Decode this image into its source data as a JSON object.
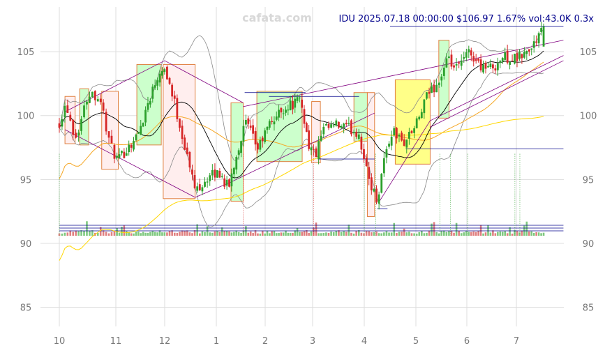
{
  "watermark": "cafata.com",
  "chart_data": {
    "type": "candlestick",
    "title": "IDU 2025.07.18 00:00:00 $106.97 1.67% vol:43.0K 0.3x",
    "x_ticks": [
      "10",
      "11",
      "12",
      "1",
      "2",
      "3",
      "4",
      "5",
      "6",
      "7"
    ],
    "y_ticks": [
      85,
      90,
      95,
      100,
      105
    ],
    "ylim": [
      83.5,
      108.5
    ],
    "grid": true,
    "colors": {
      "up": "#2ca02c",
      "down": "#d62728",
      "ma_short": "#000000",
      "ma_mid": "#f5a623",
      "ma_long": "#ffd700",
      "band": "#888888",
      "channel": "#800080",
      "level": "#00008b",
      "box_up_fill": "#ccffcc",
      "box_down_fill": "#ffeeee",
      "box_highlight_fill": "#ffff88",
      "box_edge": "#e08040"
    },
    "boxes": [
      {
        "from": 0.1,
        "to": 0.28,
        "low": 97.8,
        "high": 101.5,
        "kind": "down"
      },
      {
        "from": 0.36,
        "to": 0.52,
        "low": 97.7,
        "high": 102.1,
        "kind": "up"
      },
      {
        "from": 0.75,
        "to": 1.05,
        "low": 95.8,
        "high": 101.9,
        "kind": "down"
      },
      {
        "from": 1.43,
        "to": 1.93,
        "low": 97.7,
        "high": 104.0,
        "kind": "up"
      },
      {
        "from": 1.97,
        "to": 2.59,
        "low": 93.5,
        "high": 104.0,
        "kind": "down"
      },
      {
        "from": 3.3,
        "to": 3.55,
        "low": 93.3,
        "high": 101.0,
        "kind": "up"
      },
      {
        "from": 3.83,
        "to": 4.78,
        "low": 96.4,
        "high": 101.9,
        "kind": "up"
      },
      {
        "from": 4.98,
        "to": 5.15,
        "low": 96.3,
        "high": 101.1,
        "kind": "down"
      },
      {
        "from": 5.8,
        "to": 6.06,
        "low": 98.0,
        "high": 101.8,
        "kind": "up"
      },
      {
        "from": 6.06,
        "to": 6.2,
        "low": 92.1,
        "high": 101.8,
        "kind": "down"
      },
      {
        "from": 6.6,
        "to": 7.28,
        "low": 96.2,
        "high": 102.8,
        "kind": "highlight"
      },
      {
        "from": 7.45,
        "to": 7.65,
        "low": 99.8,
        "high": 105.9,
        "kind": "up"
      }
    ],
    "levels": [
      {
        "from": 6.5,
        "to": 9.95,
        "y": 107.0
      },
      {
        "from": 3.58,
        "to": 4.85,
        "y": 101.8
      },
      {
        "from": 4.08,
        "to": 5.9,
        "y": 101.5
      },
      {
        "from": 5.1,
        "to": 6.2,
        "y": 96.6
      },
      {
        "from": 6.8,
        "to": 9.95,
        "y": 97.4
      },
      {
        "from": 6.25,
        "to": 6.45,
        "y": 92.7
      }
    ],
    "channels": [
      {
        "x1": 0.1,
        "y1": 100.3,
        "x2": 2.0,
        "y2": 104.3
      },
      {
        "x1": 0.1,
        "y1": 98.9,
        "x2": 2.59,
        "y2": 93.6
      },
      {
        "x1": 2.0,
        "y1": 104.3,
        "x2": 3.55,
        "y2": 101.0
      },
      {
        "x1": 2.59,
        "y1": 93.6,
        "x2": 3.3,
        "y2": 94.8
      },
      {
        "x1": 3.3,
        "y1": 94.8,
        "x2": 6.2,
        "y2": 100.2
      },
      {
        "x1": 3.55,
        "y1": 100.7,
        "x2": 9.95,
        "y2": 105.9
      },
      {
        "x1": 6.28,
        "y1": 93.2,
        "x2": 7.28,
        "y2": 99.6
      },
      {
        "x1": 7.28,
        "y1": 99.6,
        "x2": 9.95,
        "y2": 104.7
      },
      {
        "x1": 7.28,
        "y1": 99.1,
        "x2": 9.95,
        "y2": 104.3
      }
    ],
    "signals": [
      0.0,
      3.55,
      5.02,
      6.0,
      6.22,
      7.47,
      7.68,
      8.02,
      8.97,
      9.07
    ]
  }
}
